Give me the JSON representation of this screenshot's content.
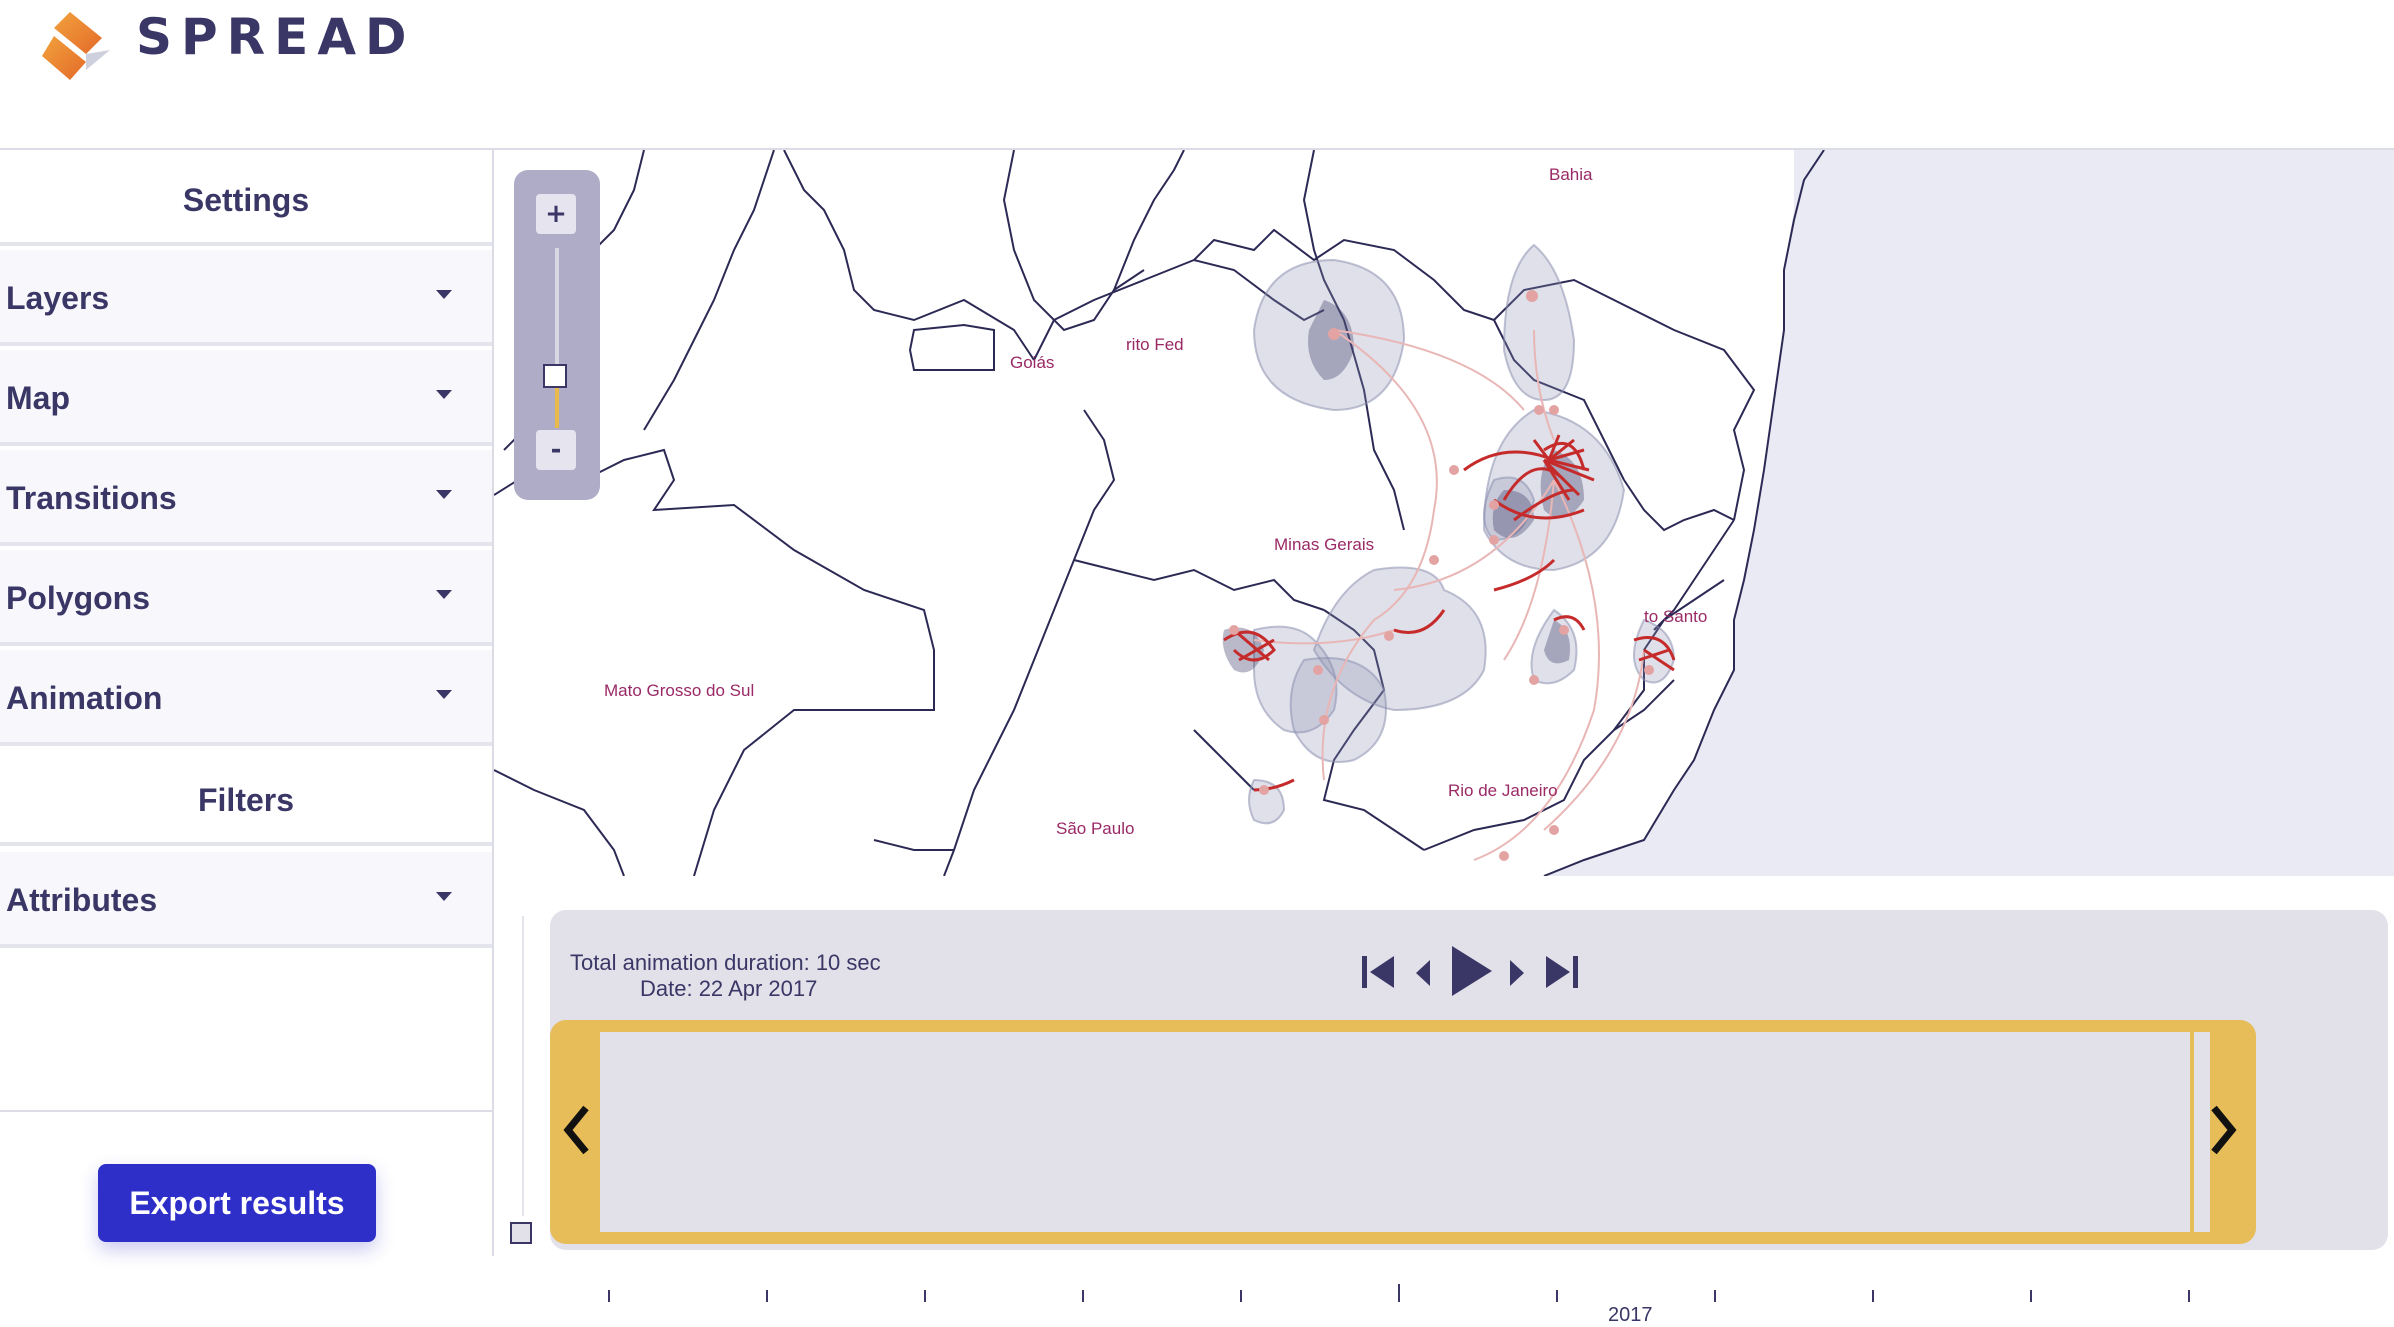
{
  "app": {
    "brand": "SPREAD",
    "accent": "#2e2fc8",
    "timeline_color": "#e7bd5a",
    "primary_text": "#3a3766"
  },
  "sidebar": {
    "settings_heading": "Settings",
    "items": [
      {
        "label": "Layers"
      },
      {
        "label": "Map"
      },
      {
        "label": "Transitions"
      },
      {
        "label": "Polygons"
      },
      {
        "label": "Animation"
      }
    ],
    "filters_heading": "Filters",
    "filter_items": [
      {
        "label": "Attributes"
      }
    ],
    "export_label": "Export results"
  },
  "map": {
    "zoom_in": "+",
    "zoom_out": "-",
    "region_labels": [
      "Bahia",
      "rito Fed",
      "Goiás",
      "Minas Gerais",
      "to Santo",
      "Mato Grosso do Sul",
      "Rio de Janeiro",
      "São Paulo"
    ],
    "label_color": "#9a2a66",
    "border_color": "#2c2a55",
    "ocean_color": "#e9eaf3",
    "polygon_color": "#8c8fb0",
    "transition_color": "#c62b2b"
  },
  "timeline": {
    "duration_text": "Total animation duration: 10 sec",
    "date_text": "Date: 22 Apr 2017",
    "year_label": "2017",
    "progress": 0.97
  },
  "icons": [
    "logo-icon",
    "caret-down-icon",
    "skip-back-icon",
    "step-back-icon",
    "play-icon",
    "step-forward-icon",
    "skip-forward-icon",
    "chevron-left-icon",
    "chevron-right-icon"
  ]
}
